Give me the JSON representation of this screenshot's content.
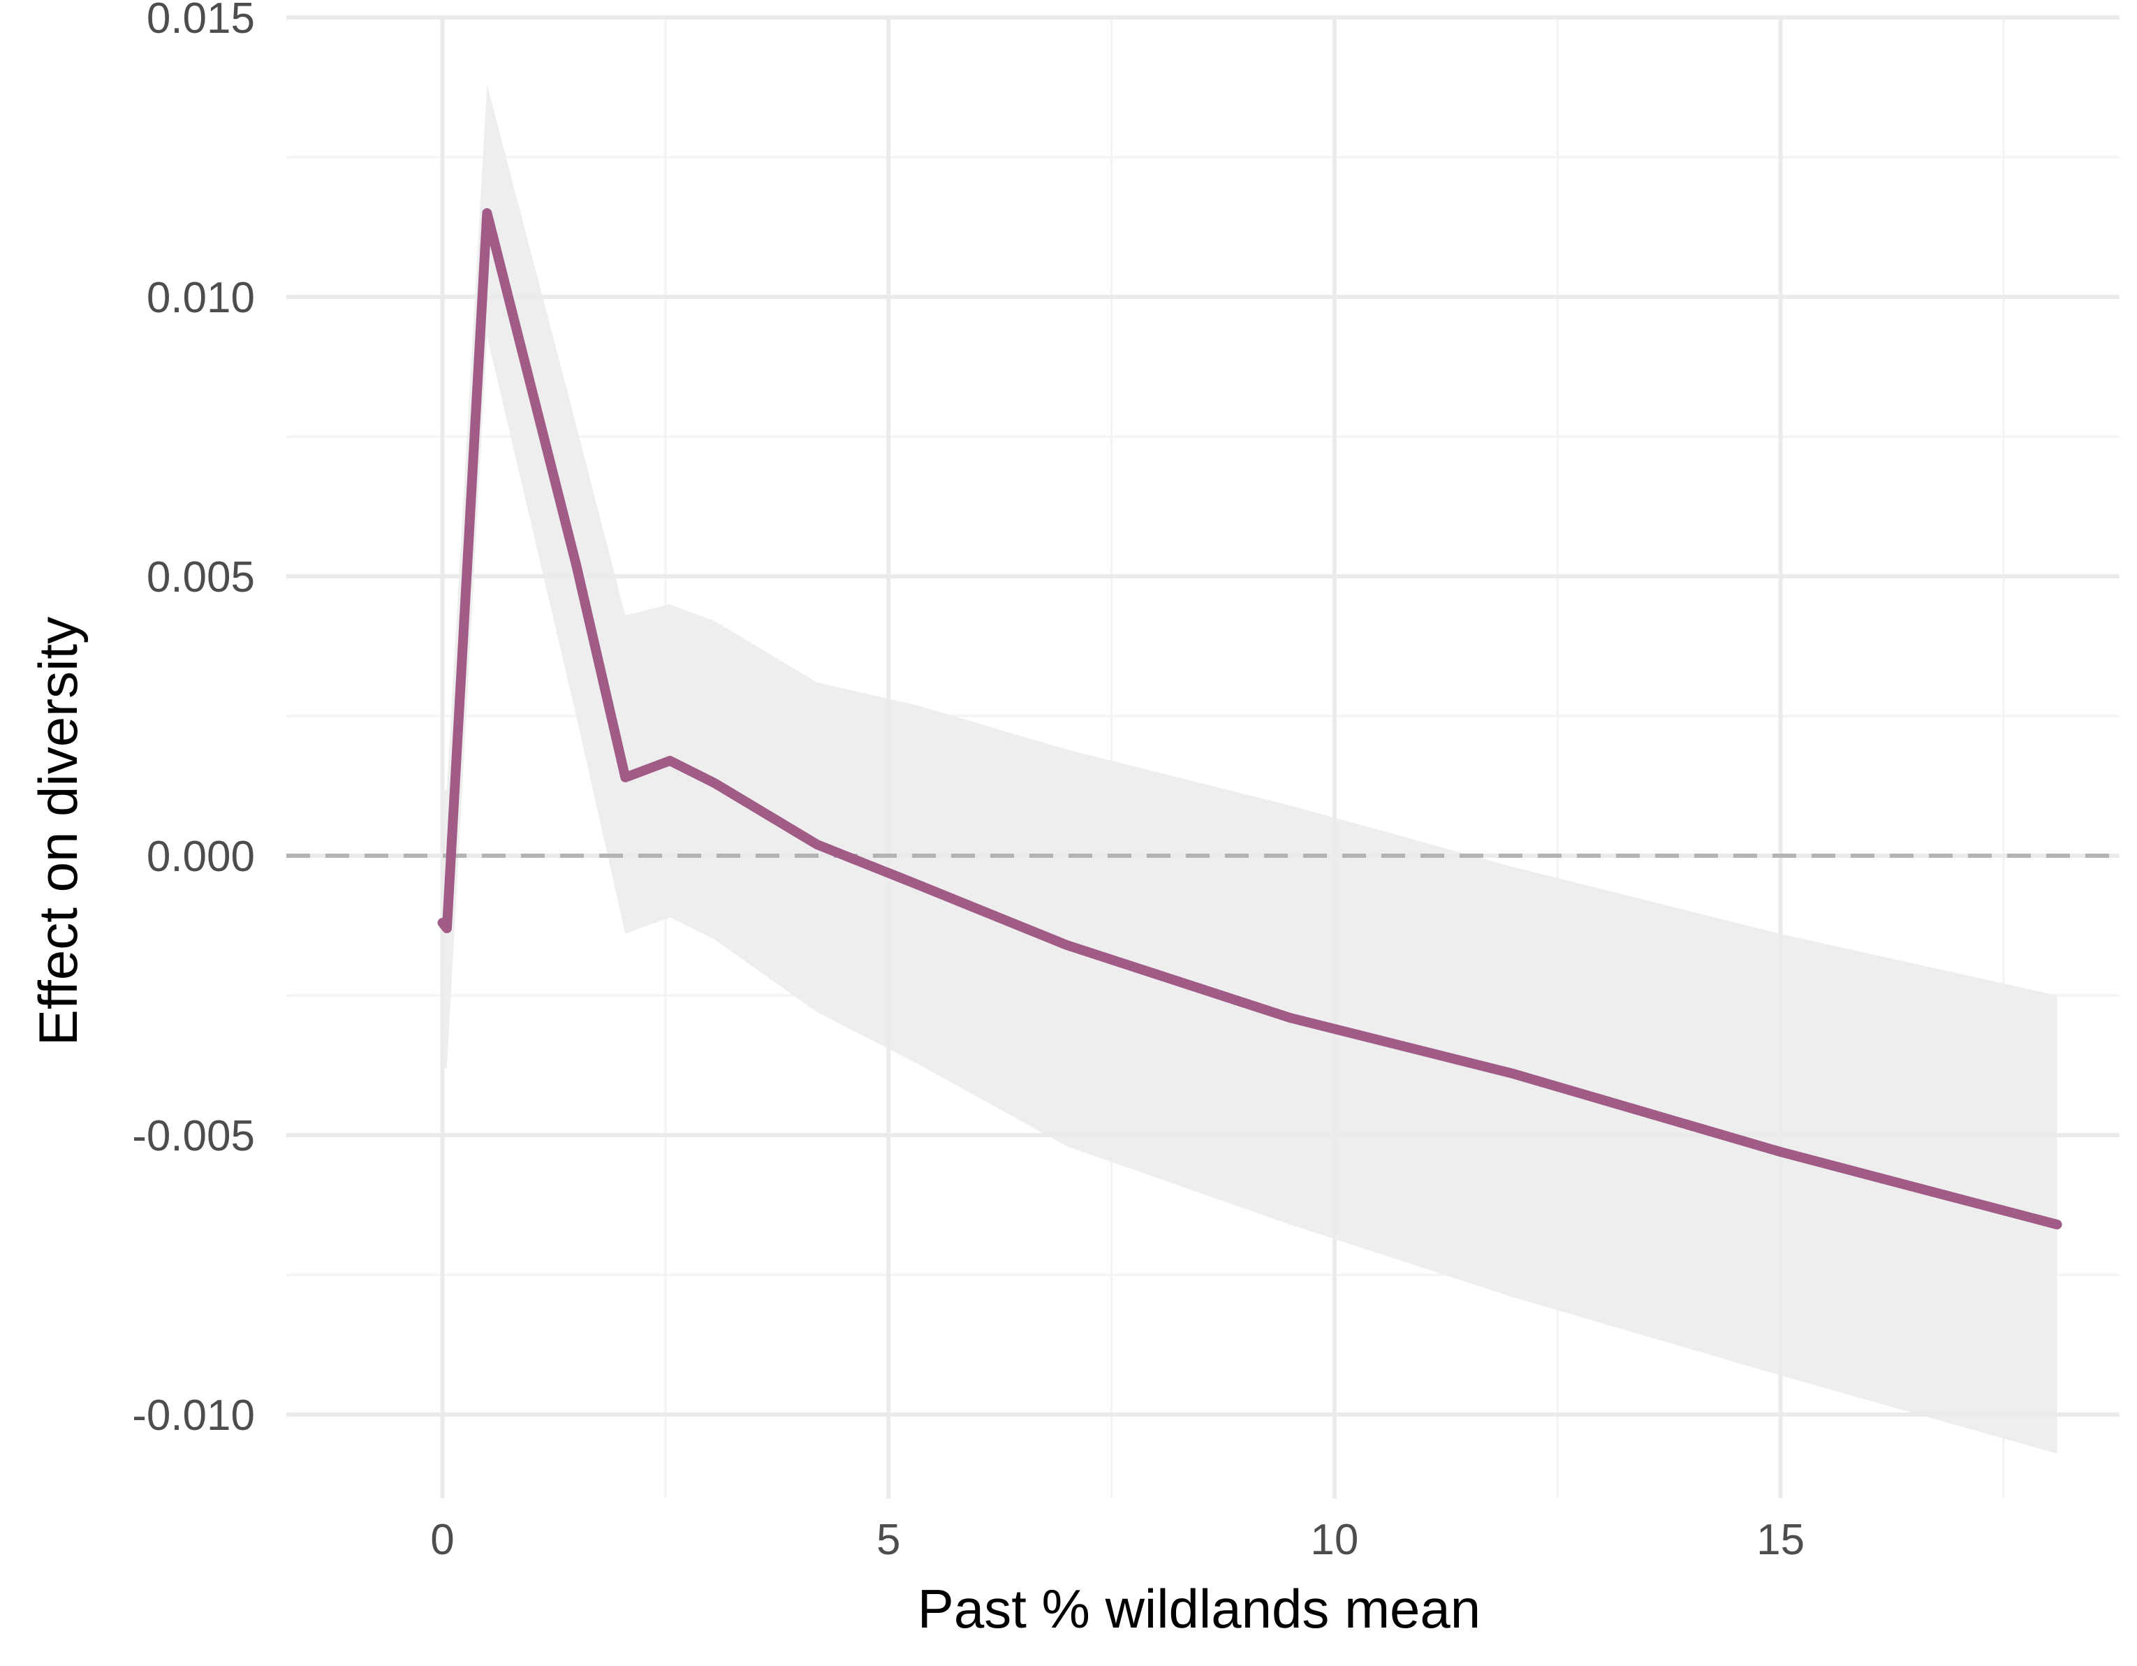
{
  "chart_data": {
    "type": "line",
    "title": "",
    "xlabel": "Past % wildlands mean",
    "ylabel": "Effect on diversity",
    "xlim": [
      -1.75,
      18.8
    ],
    "ylim": [
      -0.0115,
      0.015
    ],
    "x_ticks": [
      0,
      5,
      10,
      15
    ],
    "x_tick_labels": [
      "0",
      "5",
      "10",
      "15"
    ],
    "x_minor_ticks": [
      2.5,
      7.5,
      12.5,
      17.5
    ],
    "y_ticks": [
      -0.01,
      -0.005,
      0.0,
      0.005,
      0.01,
      0.015
    ],
    "y_tick_labels": [
      "-0.010",
      "-0.005",
      "0.000",
      "0.005",
      "0.010",
      "0.015"
    ],
    "y_minor_ticks": [
      -0.0075,
      -0.0025,
      0.0025,
      0.0075,
      0.0125
    ],
    "grid": true,
    "legend": "none",
    "reference_line": {
      "y": 0.0,
      "style": "dashed",
      "color": "#b3b3b3"
    },
    "colors": {
      "line": "#a05c87",
      "band": "#ebebeb",
      "grid_major": "#ebebeb",
      "grid_minor": "#f3f3f3"
    },
    "series": [
      {
        "x": [
          0.0,
          0.05,
          0.5,
          1.5,
          2.05,
          2.55,
          3.05,
          4.2,
          5.3,
          7.0,
          9.5,
          12.0,
          15.0,
          18.1
        ],
        "y": [
          -0.0012,
          -0.0013,
          0.0115,
          0.0052,
          0.0014,
          0.0017,
          0.0013,
          0.0002,
          -0.0005,
          -0.0016,
          -0.0029,
          -0.0039,
          -0.0053,
          -0.0066
        ],
        "lower": [
          -0.0038,
          -0.0038,
          0.0093,
          0.0025,
          -0.0014,
          -0.0011,
          -0.0015,
          -0.0028,
          -0.0037,
          -0.0052,
          -0.0066,
          -0.0079,
          -0.0093,
          -0.0107
        ],
        "upper": [
          0.0011,
          0.0012,
          0.0138,
          0.0077,
          0.0043,
          0.0045,
          0.0042,
          0.0031,
          0.0027,
          0.0019,
          0.0009,
          -0.0002,
          -0.0014,
          -0.0025
        ]
      }
    ]
  }
}
